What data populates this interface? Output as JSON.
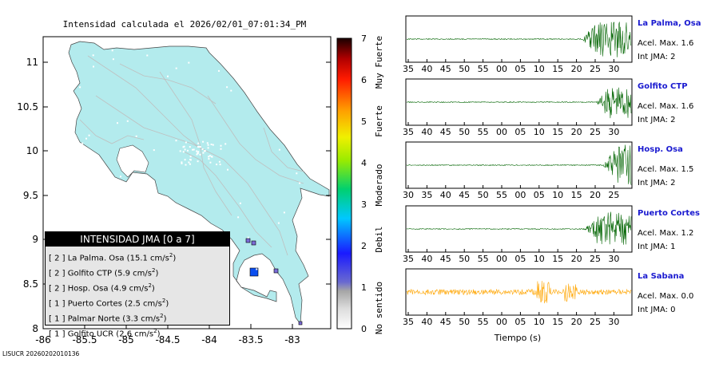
{
  "map": {
    "title": "Intensidad calculada el 2026/02/01_07:01:34_PM",
    "lat_ticks": [
      "11",
      "10.5",
      "10",
      "9.5",
      "9",
      "8.5",
      "8"
    ],
    "lon_ticks": [
      "-86",
      "-85.5",
      "-85",
      "-84.5",
      "-84",
      "-83.5",
      "-83"
    ],
    "land_color": "#b3ebed",
    "road_color": "#bfbfbf",
    "footer": "LISUCR 20260202010136"
  },
  "colorbar": {
    "ticks": [
      "0",
      "1",
      "2",
      "3",
      "4",
      "5",
      "6",
      "7"
    ],
    "labels": [
      "No sentido",
      "Debil",
      "Moderado",
      "Fuerte",
      "Muy Fuerte"
    ]
  },
  "legend": {
    "header": "INTENSIDAD JMA [0 a 7]",
    "rows": [
      {
        "jma": "[ 2 ]",
        "name": "La Palma. Osa",
        "value": "15.1 cm/s",
        "exp": "2"
      },
      {
        "jma": "[ 2 ]",
        "name": "Golfito CTP",
        "value": "5.9 cm/s",
        "exp": "2"
      },
      {
        "jma": "[ 2 ]",
        "name": "Hosp. Osa",
        "value": "4.9 cm/s",
        "exp": "2"
      },
      {
        "jma": "[ 1 ]",
        "name": "Puerto Cortes",
        "value": "2.5 cm/s",
        "exp": "2"
      },
      {
        "jma": "[ 1 ]",
        "name": "Palmar Norte",
        "value": "3.3 cm/s",
        "exp": "2"
      },
      {
        "jma": "[ 1 ]",
        "name": "Golfito UCR",
        "value": "2.6 cm/s",
        "exp": "2"
      }
    ]
  },
  "chart_data": {
    "type": "line",
    "x_axis_label": "Tiempo (s)",
    "series": [
      {
        "name": "La Palma, Osa",
        "accel": "Acel. Max. 1.6",
        "jma": "Int JMA: 2",
        "color": "#006400",
        "x_ticks": [
          "35",
          "40",
          "45",
          "50",
          "55",
          "00",
          "05",
          "10",
          "15",
          "20",
          "25",
          "30"
        ],
        "onset": 0.78,
        "amp": 0.85
      },
      {
        "name": "Golfito CTP",
        "accel": "Acel. Max. 1.6",
        "jma": "Int JMA: 2",
        "color": "#006400",
        "x_ticks": [
          "35",
          "40",
          "45",
          "50",
          "55",
          "00",
          "05",
          "10",
          "15",
          "20",
          "25",
          "30"
        ],
        "onset": 0.84,
        "amp": 0.8
      },
      {
        "name": "Hosp. Osa",
        "accel": "Acel. Max. 1.5",
        "jma": "Int JMA: 2",
        "color": "#006400",
        "x_ticks": [
          "30",
          "35",
          "40",
          "45",
          "50",
          "55",
          "00",
          "05",
          "10",
          "15",
          "20",
          "25"
        ],
        "onset": 0.87,
        "amp": 0.95
      },
      {
        "name": "Puerto Cortes",
        "accel": "Acel. Max. 1.2",
        "jma": "Int JMA: 1",
        "color": "#006400",
        "x_ticks": [
          "35",
          "40",
          "45",
          "50",
          "55",
          "00",
          "05",
          "10",
          "15",
          "20",
          "25",
          "30"
        ],
        "onset": 0.79,
        "amp": 0.8
      },
      {
        "name": "La Sabana",
        "accel": "Acel. Max. 0.0",
        "jma": "Int JMA: 0",
        "color": "#ffa500",
        "x_ticks": [
          "35",
          "40",
          "45",
          "50",
          "55",
          "00",
          "05",
          "10",
          "15",
          "20",
          "25",
          "30"
        ],
        "onset": 0.0,
        "amp": 0.25
      }
    ]
  }
}
